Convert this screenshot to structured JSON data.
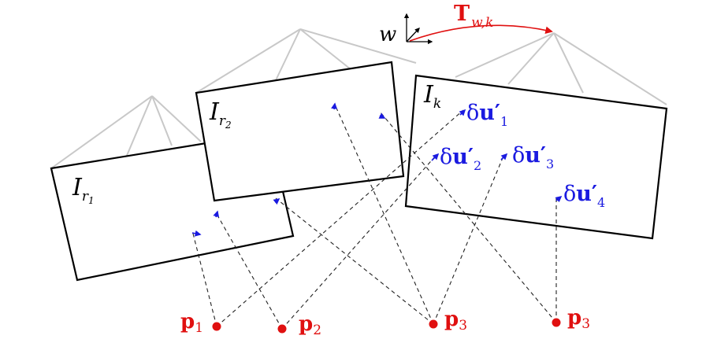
{
  "colors": {
    "point": "#e01010",
    "error_vector": "#1a1ae0",
    "transform": "#e01010",
    "frustum": "#c8c8c8",
    "ray": "#222222"
  },
  "world_frame": {
    "label": "w"
  },
  "transform": {
    "main": "T",
    "sub": "w,k"
  },
  "images": [
    {
      "name": "I",
      "sub": "r",
      "subsub": "1"
    },
    {
      "name": "I",
      "sub": "r",
      "subsub": "2"
    },
    {
      "name": "I",
      "sub": "k",
      "subsub": ""
    }
  ],
  "error_labels": [
    {
      "delta": "δ",
      "vec": "u′",
      "sub": "1"
    },
    {
      "delta": "δ",
      "vec": "u′",
      "sub": "2"
    },
    {
      "delta": "δ",
      "vec": "u′",
      "sub": "3"
    },
    {
      "delta": "δ",
      "vec": "u′",
      "sub": "4"
    }
  ],
  "points": [
    {
      "main": "p",
      "sub": "1"
    },
    {
      "main": "p",
      "sub": "2"
    },
    {
      "main": "p",
      "sub": "3"
    },
    {
      "main": "p",
      "sub": "3"
    }
  ]
}
